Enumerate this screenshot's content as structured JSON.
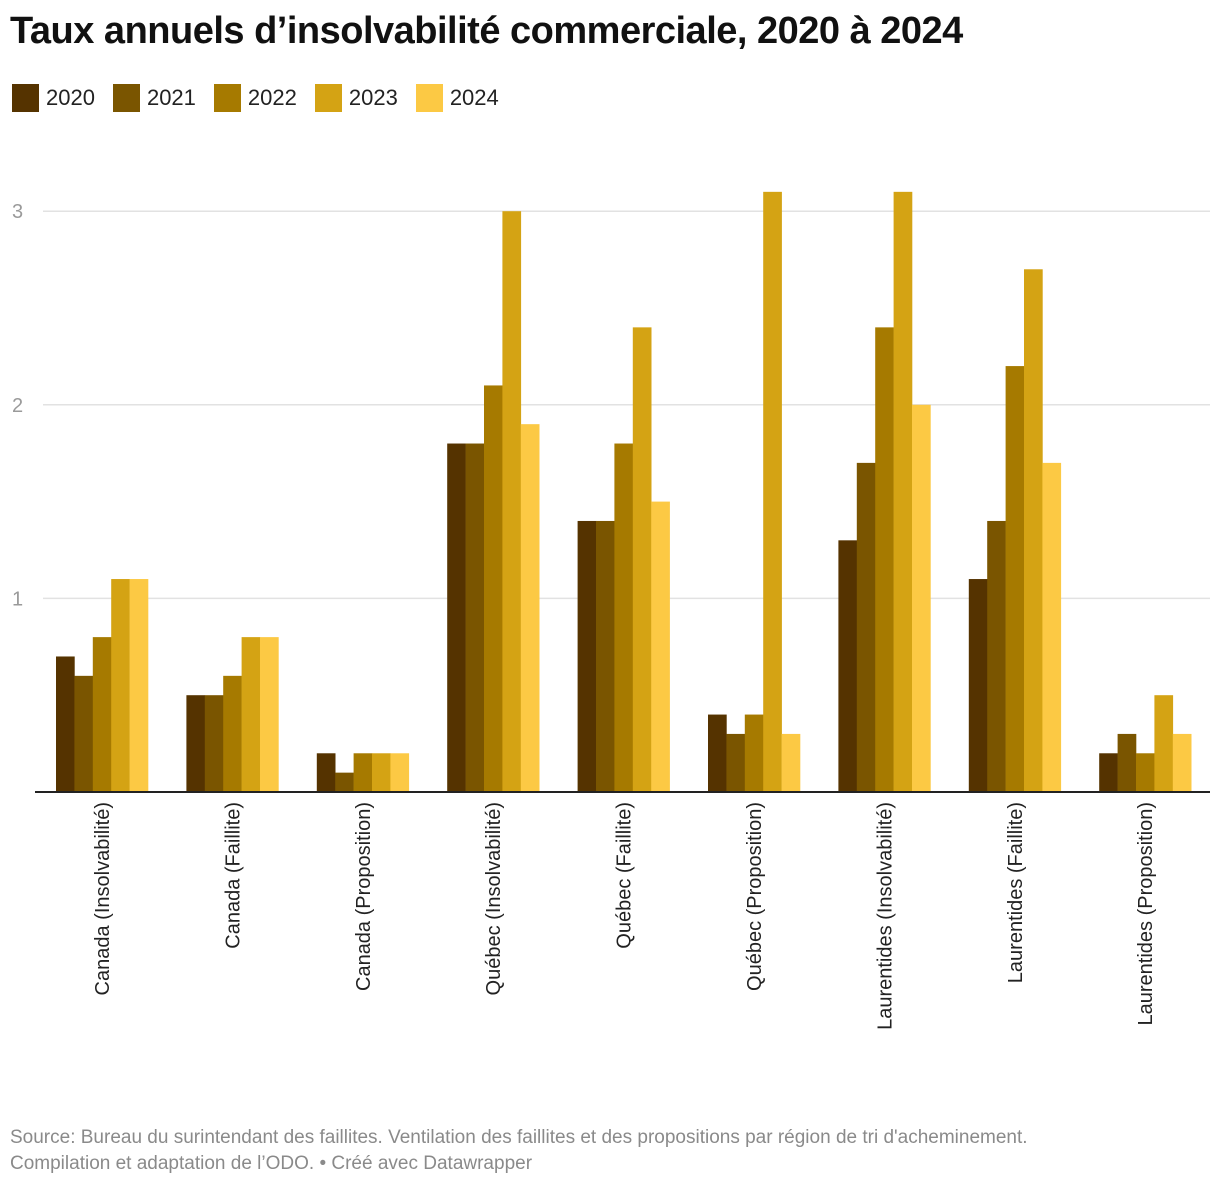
{
  "chart_data": {
    "type": "bar",
    "title": "Taux annuels d’insolvabilité commerciale, 2020 à 2024",
    "xlabel": "",
    "ylabel": "",
    "ylim": [
      0,
      3
    ],
    "yticks": [
      "1",
      "2",
      "3"
    ],
    "grid": true,
    "legend_placement": "top-left",
    "categories": [
      "Canada (Insolvabilité)",
      "Canada (Faillite)",
      "Canada (Proposition)",
      "Québec (Insolvabilité)",
      "Québec (Faillite)",
      "Québec (Proposition)",
      "Laurentides (Insolvabilité)",
      "Laurentides (Faillite)",
      "Laurentides (Proposition)"
    ],
    "series": [
      {
        "name": "2020",
        "color": "#553300",
        "values": [
          0.7,
          0.5,
          0.2,
          1.8,
          1.4,
          0.4,
          1.3,
          1.1,
          0.2
        ]
      },
      {
        "name": "2021",
        "color": "#7a5500",
        "values": [
          0.6,
          0.5,
          0.1,
          1.8,
          1.4,
          0.3,
          1.7,
          1.4,
          0.3
        ]
      },
      {
        "name": "2022",
        "color": "#a67a00",
        "values": [
          0.8,
          0.6,
          0.2,
          2.1,
          1.8,
          0.4,
          2.4,
          2.2,
          0.2
        ]
      },
      {
        "name": "2023",
        "color": "#d4a314",
        "values": [
          1.1,
          0.8,
          0.2,
          3.0,
          2.4,
          3.1,
          3.1,
          2.7,
          0.5
        ]
      },
      {
        "name": "2024",
        "color": "#fcc944",
        "values": [
          1.1,
          0.8,
          0.2,
          1.9,
          1.5,
          0.3,
          2.0,
          1.7,
          0.3
        ]
      }
    ]
  },
  "footer": {
    "line1": "Source: Bureau du surintendant des faillites. Ventilation des faillites et des propositions par région de tri d'acheminement.",
    "line2": "Compilation et adaptation de l’ODO. • Créé avec Datawrapper"
  }
}
